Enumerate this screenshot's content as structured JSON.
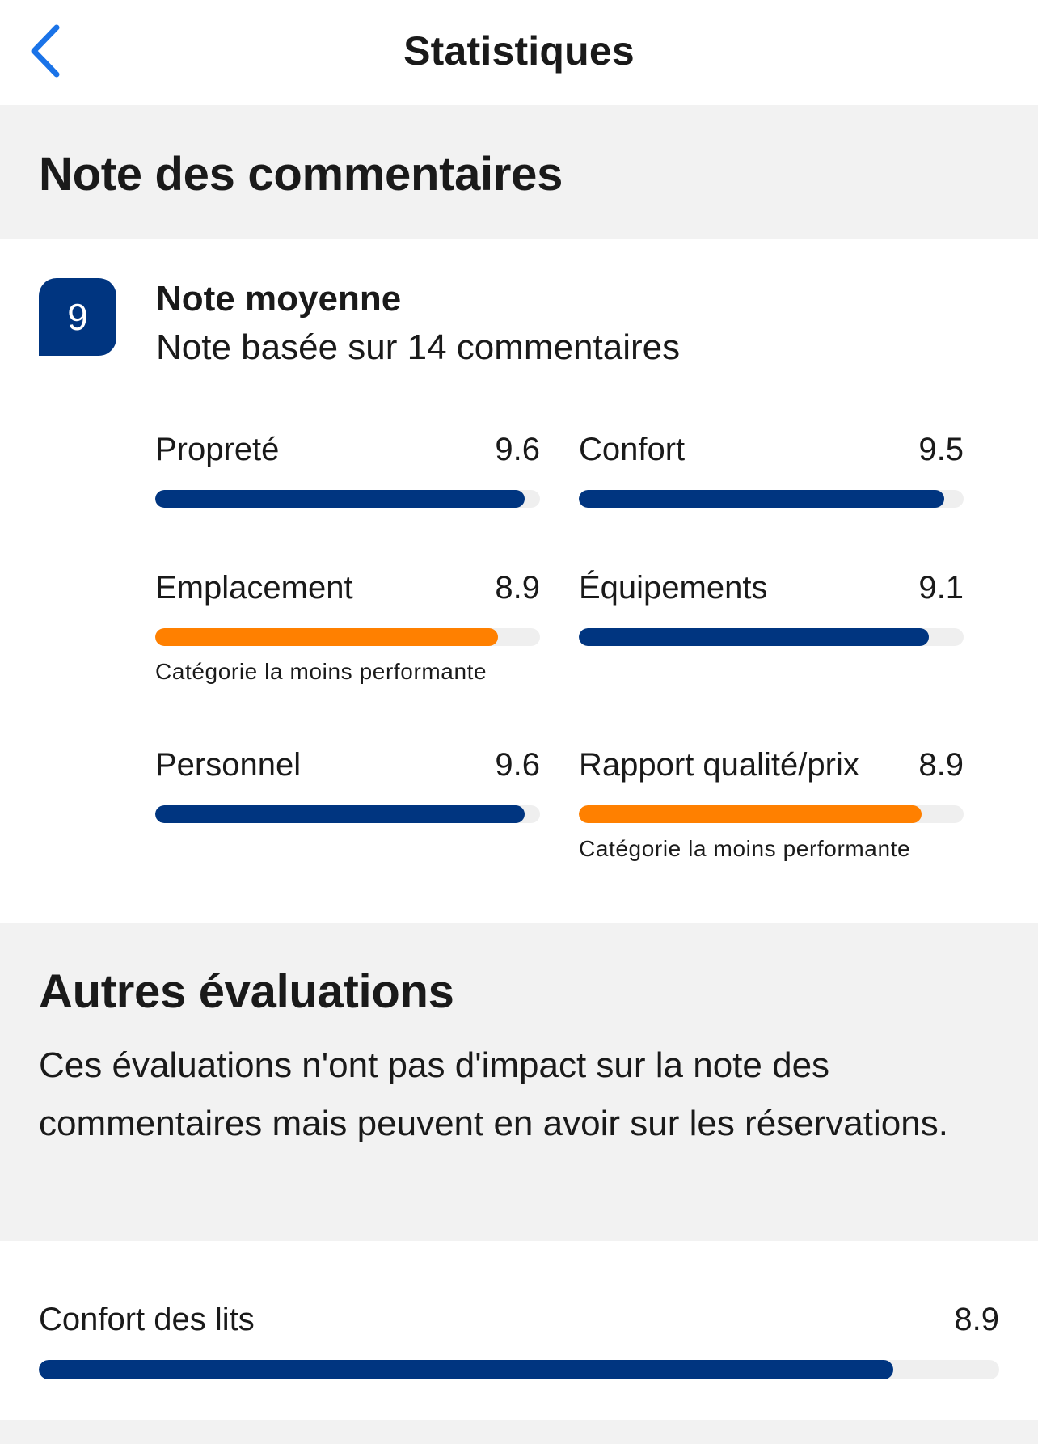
{
  "nav": {
    "title": "Statistiques",
    "back_icon": "chevron-left-icon"
  },
  "colors": {
    "accent": "#1a73e8",
    "brand": "#003580",
    "warning": "#ff8000",
    "track": "#efefef",
    "section_bg": "#f2f2f2"
  },
  "review_section": {
    "title": "Note des commentaires",
    "average": {
      "score": "9",
      "title": "Note moyenne",
      "subtitle": "Note basée sur 14 commentaires"
    },
    "categories": [
      {
        "label": "Propreté",
        "score": "9.6",
        "fill": 0.96,
        "color": "#003580",
        "note": ""
      },
      {
        "label": "Confort",
        "score": "9.5",
        "fill": 0.95,
        "color": "#003580",
        "note": ""
      },
      {
        "label": "Emplacement",
        "score": "8.9",
        "fill": 0.89,
        "color": "#ff8000",
        "note": "Catégorie la moins performante"
      },
      {
        "label": "Équipements",
        "score": "9.1",
        "fill": 0.91,
        "color": "#003580",
        "note": ""
      },
      {
        "label": "Personnel",
        "score": "9.6",
        "fill": 0.96,
        "color": "#003580",
        "note": ""
      },
      {
        "label": "Rapport qualité/prix",
        "score": "8.9",
        "fill": 0.89,
        "color": "#ff8000",
        "note": "Catégorie la moins performante"
      }
    ]
  },
  "other_section": {
    "title": "Autres évaluations",
    "description": "Ces évaluations n'ont pas d'impact sur la note des commentaires mais peuvent en avoir sur les réservations.",
    "items": [
      {
        "label": "Confort des lits",
        "score": "8.9",
        "fill": 0.89,
        "color": "#003580"
      }
    ]
  }
}
